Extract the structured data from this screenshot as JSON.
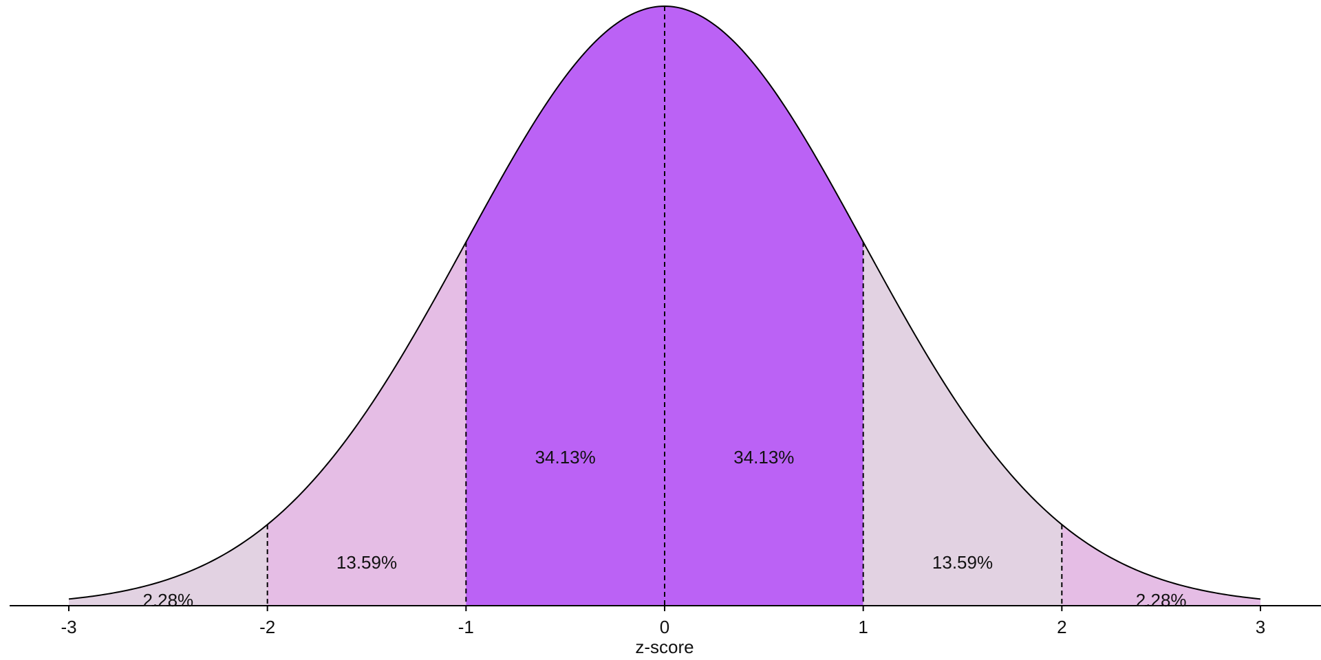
{
  "chart_data": {
    "type": "area",
    "distribution": "standard normal",
    "x_range": [
      -3,
      3
    ],
    "xlabel": "z-score",
    "ylabel": "",
    "title": "",
    "ticks": [
      "-3",
      "-2",
      "-1",
      "0",
      "1",
      "2",
      "3"
    ],
    "boundaries": [
      -2,
      -1,
      0,
      1,
      2
    ],
    "regions": [
      {
        "from": -3,
        "to": -2,
        "value": 2.28,
        "label": "2.28%",
        "color": "#E2D2E2"
      },
      {
        "from": -2,
        "to": -1,
        "value": 13.59,
        "label": "13.59%",
        "color": "#E5BDE5"
      },
      {
        "from": -1,
        "to": 0,
        "value": 34.13,
        "label": "34.13%",
        "color": "#BB62F5"
      },
      {
        "from": 0,
        "to": 1,
        "value": 34.13,
        "label": "34.13%",
        "color": "#BB62F5"
      },
      {
        "from": 1,
        "to": 2,
        "value": 13.59,
        "label": "13.59%",
        "color": "#E2D2E2"
      },
      {
        "from": 2,
        "to": 3,
        "value": 2.28,
        "label": "2.28%",
        "color": "#E5BDE5"
      }
    ],
    "curve_color": "#000000",
    "grid": false,
    "legend": "none"
  }
}
